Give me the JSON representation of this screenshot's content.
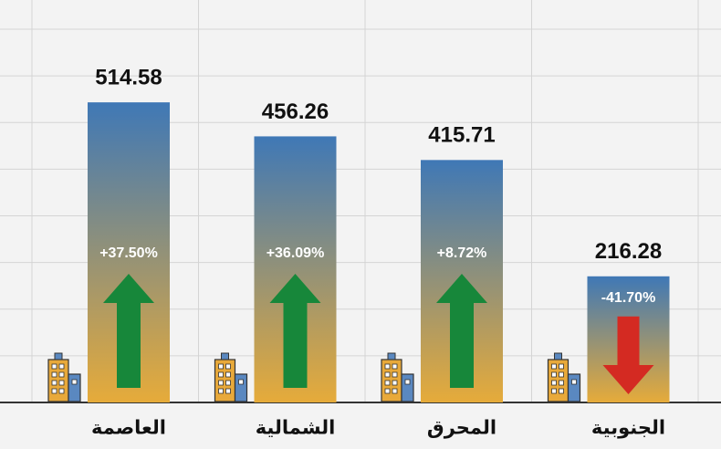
{
  "chart_data": {
    "type": "bar",
    "categories": [
      "العاصمة",
      "الشمالية",
      "المحرق",
      "الجنوبية"
    ],
    "values": [
      514.58,
      456.26,
      415.71,
      216.28
    ],
    "changes": [
      37.5,
      36.09,
      8.72,
      -41.7
    ],
    "change_labels": [
      "+37.50%",
      "+36.09%",
      "+8.72%",
      "-41.70%"
    ],
    "ylim": [
      0,
      640
    ],
    "yticks": [
      0,
      80,
      160,
      240,
      320,
      400,
      480,
      560,
      640
    ],
    "grid": true,
    "bar_colors": [
      "#3f78b6",
      "#e6ab3a"
    ],
    "up_color": "#17873a",
    "down_color": "#d42a22"
  }
}
